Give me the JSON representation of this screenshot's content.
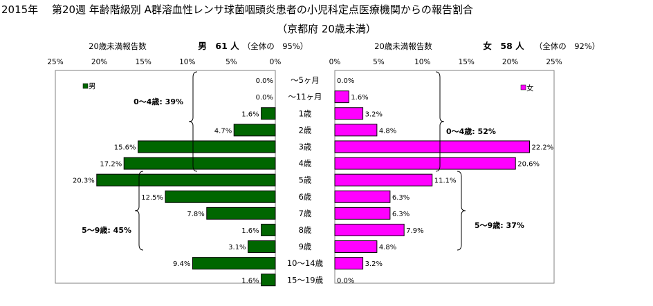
{
  "title": "2015年　 第20週 年齢階級別 A群溶血性レンサ球菌咽頭炎患者の小児科定点医療機関からの報告割合",
  "subtitle": "（京都府 20歳未満）",
  "chart_data": [
    {
      "type": "bar",
      "orientation": "horizontal",
      "side": "left",
      "header_label": "20歳未満報告数",
      "header_summary": "男　61 人",
      "header_share": "（全体の　95%）",
      "legend": "男",
      "color": "#006600",
      "xlim": [
        0,
        25
      ],
      "ticks": [
        "25%",
        "20%",
        "15%",
        "10%",
        "5%",
        "0%"
      ],
      "categories": [
        "～5ヶ月",
        "～11ヶ月",
        "1歳",
        "2歳",
        "3歳",
        "4歳",
        "5歳",
        "6歳",
        "7歳",
        "8歳",
        "9歳",
        "10～14歳",
        "15～19歳"
      ],
      "values": [
        0.0,
        0.0,
        1.6,
        4.7,
        15.6,
        17.2,
        20.3,
        12.5,
        7.8,
        1.6,
        3.1,
        9.4,
        1.6
      ],
      "value_labels": [
        "0.0%",
        "0.0%",
        "1.6%",
        "4.7%",
        "15.6%",
        "17.2%",
        "20.3%",
        "12.5%",
        "7.8%",
        "1.6%",
        "3.1%",
        "9.4%",
        "1.6%"
      ],
      "annotations": [
        "0～4歳: 39%",
        "5～9歳: 45%"
      ]
    },
    {
      "type": "bar",
      "orientation": "horizontal",
      "side": "right",
      "header_label": "20歳未満報告数",
      "header_summary": "女　58 人",
      "header_share": "（全体の　92%）",
      "legend": "女",
      "color": "#ff00ff",
      "xlim": [
        0,
        25
      ],
      "ticks": [
        "0%",
        "5%",
        "10%",
        "15%",
        "20%",
        "25%"
      ],
      "categories": [
        "～5ヶ月",
        "～11ヶ月",
        "1歳",
        "2歳",
        "3歳",
        "4歳",
        "5歳",
        "6歳",
        "7歳",
        "8歳",
        "9歳",
        "10～14歳",
        "15～19歳"
      ],
      "values": [
        0.0,
        1.6,
        3.2,
        4.8,
        22.2,
        20.6,
        11.1,
        6.3,
        6.3,
        7.9,
        4.8,
        3.2,
        0.0
      ],
      "value_labels": [
        "0.0%",
        "1.6%",
        "3.2%",
        "4.8%",
        "22.2%",
        "20.6%",
        "11.1%",
        "6.3%",
        "6.3%",
        "7.9%",
        "4.8%",
        "3.2%",
        "0.0%"
      ],
      "annotations": [
        "0～4歳: 52%",
        "5～9歳: 37%"
      ]
    }
  ]
}
